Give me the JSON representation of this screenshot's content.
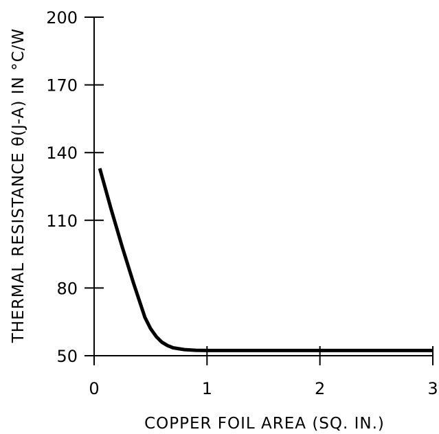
{
  "chart_data": {
    "type": "line",
    "title": "",
    "xlabel": "COPPER FOIL AREA (SQ. IN.)",
    "ylabel": "THERMAL RESISTANCE θ(J-A) IN °C/W",
    "xlim": [
      0,
      3
    ],
    "ylim": [
      50,
      200
    ],
    "x_ticks": [
      0,
      1,
      2,
      3
    ],
    "y_ticks": [
      50,
      80,
      110,
      140,
      170,
      200
    ],
    "x_tick_labels": [
      "0",
      "1",
      "2",
      "3"
    ],
    "y_tick_labels": [
      "50",
      "80",
      "110",
      "140",
      "170",
      "200"
    ],
    "grid": false,
    "line_color": "#000000",
    "series": [
      {
        "x": [
          0.05,
          0.15,
          0.25,
          0.35,
          0.45,
          0.5,
          0.55,
          0.6,
          0.65,
          0.7,
          0.8,
          0.9,
          1.0,
          1.5,
          2.0,
          2.5,
          3.0
        ],
        "y": [
          133,
          115,
          98,
          82,
          67,
          62,
          58.5,
          56,
          54.5,
          53.5,
          52.7,
          52.4,
          52.3,
          52.3,
          52.3,
          52.3,
          52.3
        ]
      }
    ]
  }
}
